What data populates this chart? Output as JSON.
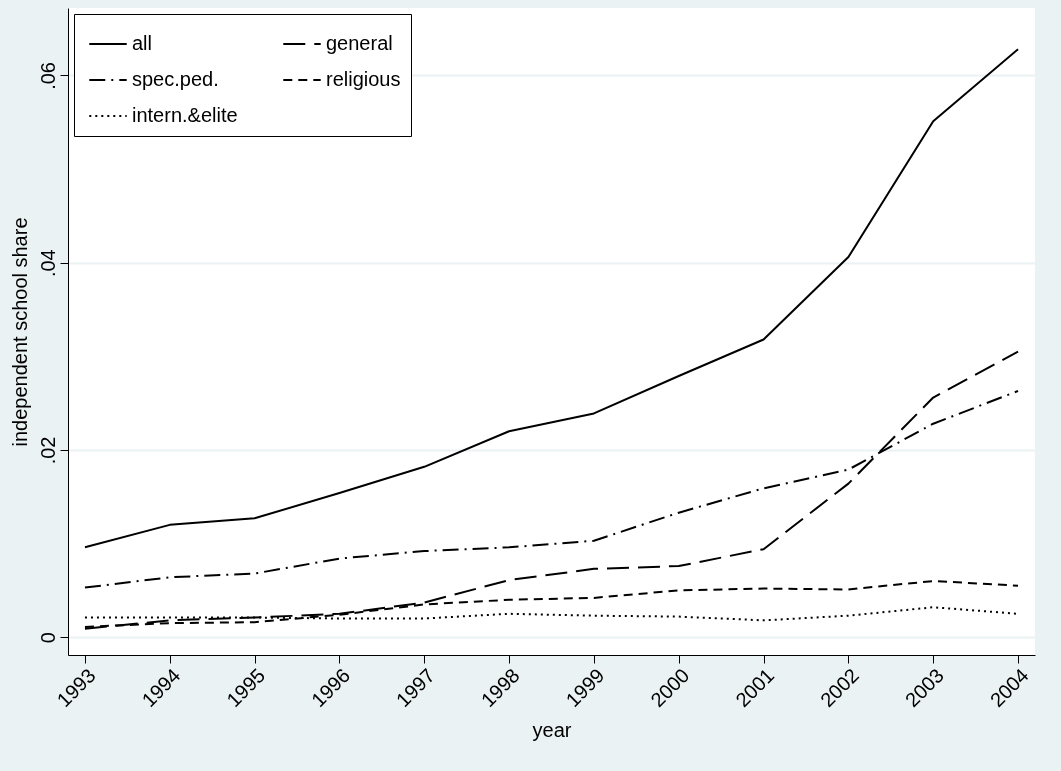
{
  "chart_data": {
    "type": "line",
    "xlabel": "year",
    "ylabel": "independent school share",
    "x": [
      1993,
      1994,
      1995,
      1996,
      1997,
      1998,
      1999,
      2000,
      2001,
      2002,
      2003,
      2004
    ],
    "xlim": [
      1992.8,
      2004.2
    ],
    "xticks": [
      1993,
      1994,
      1995,
      1996,
      1997,
      1998,
      1999,
      2000,
      2001,
      2002,
      2003,
      2004
    ],
    "ylim": [
      -0.0019,
      0.0672
    ],
    "yticks": [
      0,
      {
        "value": 0.02,
        "label": ".02"
      },
      {
        "value": 0.04,
        "label": ".04"
      },
      {
        "value": 0.06,
        "label": ".06"
      }
    ],
    "grid": "y",
    "legend": "top left",
    "marker": "none",
    "series": [
      {
        "name": "all",
        "color": "#000000",
        "line_style": "solid",
        "values": [
          0.0096,
          0.012,
          0.0127,
          0.0154,
          0.0182,
          0.022,
          0.0239,
          0.0279,
          0.0318,
          0.0406,
          0.0551,
          0.0628
        ]
      },
      {
        "name": "general",
        "color": "#000000",
        "line_style": "longdash",
        "values": [
          0.0009,
          0.0018,
          0.0021,
          0.0025,
          0.0037,
          0.0061,
          0.0073,
          0.0076,
          0.0094,
          0.0164,
          0.0256,
          0.0305
        ]
      },
      {
        "name": "spec.ped.",
        "color": "#000000",
        "line_style": "dashdot",
        "values": [
          0.0053,
          0.0064,
          0.0068,
          0.0084,
          0.0092,
          0.0096,
          0.0103,
          0.0133,
          0.0159,
          0.0179,
          0.0228,
          0.0263
        ]
      },
      {
        "name": "religious",
        "color": "#000000",
        "line_style": "dashed",
        "values": [
          0.0011,
          0.0015,
          0.0016,
          0.0024,
          0.0035,
          0.004,
          0.0042,
          0.005,
          0.0052,
          0.0051,
          0.006,
          0.0055
        ]
      },
      {
        "name": "intern.&elite",
        "color": "#000000",
        "line_style": "dotted",
        "values": [
          0.0021,
          0.0021,
          0.0021,
          0.002,
          0.002,
          0.0025,
          0.0023,
          0.0022,
          0.0018,
          0.0023,
          0.0032,
          0.0025
        ]
      }
    ]
  }
}
